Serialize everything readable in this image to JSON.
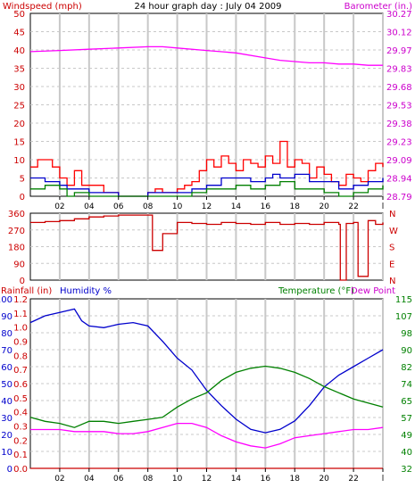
{
  "header": {
    "windspeed_label": "Windspeed (mph)",
    "title": "24 hour graph day : July 04 2009",
    "barometer_label": "Barometer (in.)"
  },
  "footer": {
    "rainfall_label": "Rainfall (in)",
    "humidity_label": "Humidity %",
    "temperature_label": "Temperature (°F)",
    "dewpoint_label": "Dew Point"
  },
  "colors": {
    "windspeed": "#ff0000",
    "gust": "#ff0000",
    "wind_avg": "#0000cc",
    "wind_low": "#008000",
    "barometer": "#ff00ff",
    "direction": "#cc0000",
    "humidity": "#0000cc",
    "temperature": "#008000",
    "dewpoint": "#ff00ff",
    "rain": "#cc0000",
    "grid": "#c8c8c8"
  },
  "chart_data": [
    {
      "type": "line",
      "x_ticks": [
        "02",
        "04",
        "06",
        "08",
        "10",
        "12",
        "14",
        "16",
        "18",
        "20",
        "22",
        "l"
      ],
      "y_left_ticks": [
        "50",
        "45",
        "40",
        "35",
        "30",
        "25",
        "20",
        "15",
        "10",
        "5",
        "0"
      ],
      "y_left_range": [
        0,
        50
      ],
      "y_right_ticks": [
        "30.27",
        "30.12",
        "29.97",
        "29.83",
        "29.68",
        "29.53",
        "29.38",
        "29.23",
        "29.09",
        "28.94",
        "28.79"
      ],
      "y_right_range": [
        28.79,
        30.27
      ],
      "grid": true,
      "series": [
        {
          "key": "barometer",
          "axis": "right",
          "x": [
            0,
            2,
            4,
            6,
            8,
            9,
            10,
            12,
            14,
            16,
            17,
            18,
            19,
            20,
            21,
            22,
            23,
            24
          ],
          "y": [
            29.96,
            29.97,
            29.98,
            29.99,
            30.0,
            30.0,
            29.99,
            29.97,
            29.95,
            29.91,
            29.89,
            29.88,
            29.87,
            29.87,
            29.86,
            29.86,
            29.85,
            29.85
          ]
        },
        {
          "key": "gust",
          "axis": "left",
          "x": [
            0,
            0.5,
            1,
            1.5,
            2,
            2.5,
            3,
            3.5,
            4,
            5,
            6,
            7,
            8,
            8.5,
            9,
            9.5,
            10,
            10.5,
            11,
            11.5,
            12,
            12.5,
            13,
            13.5,
            14,
            14.5,
            15,
            15.5,
            16,
            16.5,
            17,
            17.5,
            18,
            18.5,
            19,
            19.5,
            20,
            20.5,
            21,
            21.5,
            22,
            22.5,
            23,
            23.5,
            24
          ],
          "y": [
            8,
            10,
            10,
            8,
            5,
            3,
            7,
            3,
            3,
            1,
            0,
            0,
            1,
            2,
            1,
            1,
            2,
            3,
            4,
            7,
            10,
            8,
            11,
            9,
            7,
            10,
            9,
            8,
            11,
            9,
            15,
            8,
            10,
            9,
            5,
            8,
            6,
            4,
            3,
            6,
            5,
            4,
            7,
            9,
            8
          ]
        },
        {
          "key": "wind_avg",
          "axis": "left",
          "x": [
            0,
            1,
            1.5,
            2,
            2.5,
            3,
            4,
            5,
            6,
            7,
            8,
            9,
            9.5,
            10,
            11,
            12,
            13,
            14,
            15,
            16,
            16.5,
            17,
            18,
            19,
            20,
            21,
            22,
            23,
            24
          ],
          "y": [
            5,
            4,
            4,
            3,
            2,
            2,
            1,
            1,
            0,
            0,
            1,
            1,
            1,
            1,
            2,
            3,
            5,
            5,
            4,
            5,
            6,
            5,
            6,
            4,
            4,
            2,
            3,
            4,
            5
          ]
        },
        {
          "key": "wind_low",
          "axis": "left",
          "x": [
            0,
            1,
            2,
            2.5,
            3,
            4,
            5,
            6,
            7,
            8,
            9,
            10,
            11,
            12,
            13,
            14,
            15,
            16,
            17,
            18,
            19,
            20,
            21,
            22,
            23,
            24
          ],
          "y": [
            2,
            3,
            2,
            0,
            1,
            0,
            0,
            0,
            0,
            0,
            0,
            0,
            1,
            2,
            2,
            3,
            2,
            3,
            4,
            2,
            2,
            1,
            0,
            1,
            2,
            3
          ]
        }
      ]
    },
    {
      "type": "line",
      "x_ticks": [],
      "y_left_ticks": [
        "360",
        "270",
        "180",
        "90",
        "0"
      ],
      "y_left_range": [
        0,
        360
      ],
      "y_right_ticks": [
        "N",
        "W",
        "S",
        "E",
        "N"
      ],
      "grid": true,
      "series": [
        {
          "key": "direction",
          "axis": "left",
          "x": [
            0,
            1,
            2,
            3,
            4,
            5,
            6,
            7,
            8,
            8.3,
            8.31,
            9,
            9.01,
            10,
            10.01,
            11,
            12,
            13,
            14,
            15,
            16,
            17,
            18,
            19,
            20,
            21,
            21.1,
            21.5,
            21.51,
            22,
            22.3,
            22.31,
            23,
            23.5,
            24
          ],
          "y": [
            310,
            315,
            320,
            330,
            340,
            345,
            350,
            350,
            350,
            350,
            160,
            160,
            250,
            270,
            310,
            305,
            300,
            310,
            305,
            300,
            310,
            300,
            305,
            300,
            310,
            300,
            0,
            0,
            305,
            310,
            310,
            20,
            320,
            300,
            310
          ]
        }
      ]
    },
    {
      "type": "line",
      "x_ticks": [
        "02",
        "04",
        "06",
        "08",
        "10",
        "12",
        "14",
        "16",
        "18",
        "20",
        "22",
        "l"
      ],
      "y_left_outer_ticks": [
        "100",
        "90",
        "80",
        "70",
        "60",
        "50",
        "40",
        "30",
        "20",
        "10",
        "0"
      ],
      "y_left_inner_ticks": [
        "1.2",
        "1.1",
        "1.0",
        "0.9",
        "0.8",
        "0.7",
        "0.6",
        "0.5",
        "0.4",
        "0.3",
        "0.2",
        "0.1",
        "0.0"
      ],
      "y_left_range": [
        0,
        100
      ],
      "y_right_ticks": [
        "115",
        "107",
        "98",
        "90",
        "82",
        "74",
        "65",
        "57",
        "49",
        "40",
        "32"
      ],
      "y_right_range": [
        32,
        115
      ],
      "grid": true,
      "series": [
        {
          "key": "humidity",
          "axis": "left",
          "x": [
            0,
            1,
            2,
            3,
            3.5,
            4,
            5,
            6,
            7,
            8,
            9,
            10,
            11,
            12,
            13,
            14,
            15,
            16,
            17,
            18,
            19,
            20,
            21,
            22,
            23,
            24
          ],
          "y": [
            86,
            90,
            92,
            94,
            87,
            84,
            83,
            85,
            86,
            84,
            75,
            65,
            58,
            46,
            37,
            29,
            23,
            21,
            23,
            28,
            37,
            48,
            55,
            60,
            65,
            70
          ]
        },
        {
          "key": "temperature",
          "axis": "right",
          "x": [
            0,
            1,
            2,
            3,
            4,
            5,
            6,
            7,
            8,
            9,
            10,
            11,
            12,
            13,
            14,
            15,
            16,
            17,
            18,
            19,
            20,
            21,
            22,
            23,
            24
          ],
          "y": [
            57,
            55,
            54,
            52,
            55,
            55,
            54,
            55,
            56,
            57,
            62,
            66,
            69,
            75,
            79,
            81,
            82,
            81,
            79,
            76,
            72,
            69,
            66,
            64,
            62
          ]
        },
        {
          "key": "dewpoint",
          "axis": "right",
          "x": [
            0,
            1,
            2,
            3,
            4,
            5,
            6,
            7,
            8,
            9,
            10,
            11,
            12,
            13,
            14,
            15,
            16,
            17,
            18,
            19,
            20,
            21,
            22,
            23,
            24
          ],
          "y": [
            51,
            51,
            51,
            50,
            50,
            50,
            49,
            49,
            50,
            52,
            54,
            54,
            52,
            48,
            45,
            43,
            42,
            44,
            47,
            48,
            49,
            50,
            51,
            51,
            52
          ]
        },
        {
          "key": "rain",
          "axis": "left",
          "x": [
            0,
            24
          ],
          "y": [
            0,
            0
          ]
        }
      ]
    }
  ]
}
